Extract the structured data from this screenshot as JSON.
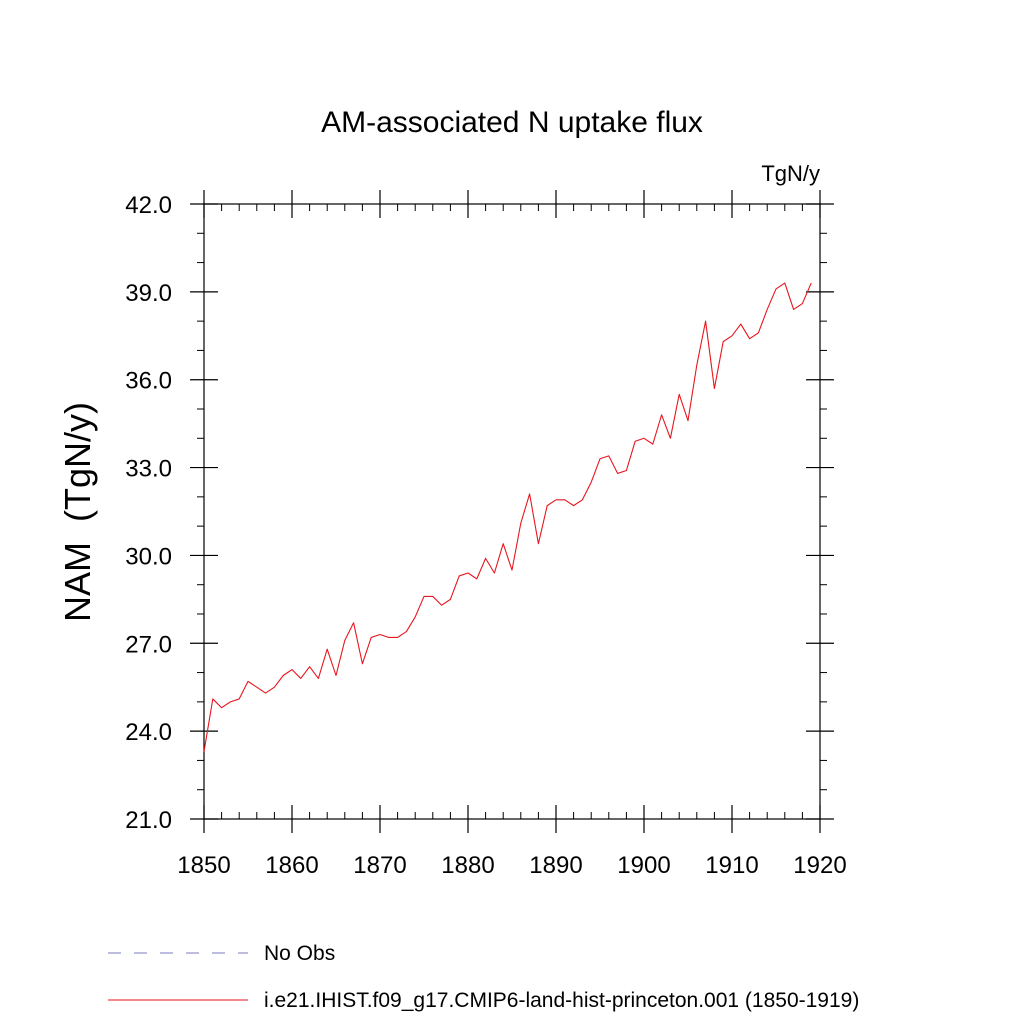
{
  "chart_data": {
    "type": "line",
    "title": "AM-associated N uptake flux",
    "units": "TgN/y",
    "ylabel": "NAM  (TgN/y)",
    "xlabel": "",
    "xlim": [
      1850,
      1920
    ],
    "ylim": [
      21.0,
      42.0
    ],
    "x_ticks": [
      1850,
      1860,
      1870,
      1880,
      1890,
      1900,
      1910,
      1920
    ],
    "x_tick_labels": [
      "1850",
      "1860",
      "1870",
      "1880",
      "1890",
      "1900",
      "1910",
      "1920"
    ],
    "y_ticks": [
      21,
      24,
      27,
      30,
      33,
      36,
      39,
      42
    ],
    "y_tick_labels": [
      "21.0",
      "24.0",
      "27.0",
      "30.0",
      "33.0",
      "36.0",
      "39.0",
      "42.0"
    ],
    "grid": false,
    "legend_position": "bottom",
    "legend": [
      {
        "label": "No Obs",
        "style": "dashed",
        "color": "#7b7bc0"
      },
      {
        "label": "i.e21.IHIST.f09_g17.CMIP6-land-hist-princeton.001 (1850-1919)",
        "style": "solid",
        "color": "#e8161e"
      }
    ],
    "series": [
      {
        "name": "i.e21.IHIST.f09_g17.CMIP6-land-hist-princeton.001 (1850-1919)",
        "color": "#e8161e",
        "x": [
          1850,
          1851,
          1852,
          1853,
          1854,
          1855,
          1856,
          1857,
          1858,
          1859,
          1860,
          1861,
          1862,
          1863,
          1864,
          1865,
          1866,
          1867,
          1868,
          1869,
          1870,
          1871,
          1872,
          1873,
          1874,
          1875,
          1876,
          1877,
          1878,
          1879,
          1880,
          1881,
          1882,
          1883,
          1884,
          1885,
          1886,
          1887,
          1888,
          1889,
          1890,
          1891,
          1892,
          1893,
          1894,
          1895,
          1896,
          1897,
          1898,
          1899,
          1900,
          1901,
          1902,
          1903,
          1904,
          1905,
          1906,
          1907,
          1908,
          1909,
          1910,
          1911,
          1912,
          1913,
          1914,
          1915,
          1916,
          1917,
          1918,
          1919
        ],
        "values": [
          23.3,
          25.1,
          24.8,
          25.0,
          25.1,
          25.7,
          25.5,
          25.3,
          25.5,
          25.9,
          26.1,
          25.8,
          26.2,
          25.8,
          26.8,
          25.9,
          27.1,
          27.7,
          26.3,
          27.2,
          27.3,
          27.2,
          27.2,
          27.4,
          27.9,
          28.6,
          28.6,
          28.3,
          28.5,
          29.3,
          29.4,
          29.2,
          29.9,
          29.4,
          30.4,
          29.5,
          31.1,
          32.1,
          30.4,
          31.7,
          31.9,
          31.9,
          31.7,
          31.9,
          32.5,
          33.3,
          33.4,
          32.8,
          32.9,
          33.9,
          34.0,
          33.8,
          34.8,
          34.0,
          35.5,
          34.6,
          36.5,
          38.0,
          35.7,
          37.3,
          37.5,
          37.9,
          37.4,
          37.6,
          38.4,
          39.1,
          39.3,
          38.4,
          38.6,
          39.3
        ]
      }
    ]
  }
}
